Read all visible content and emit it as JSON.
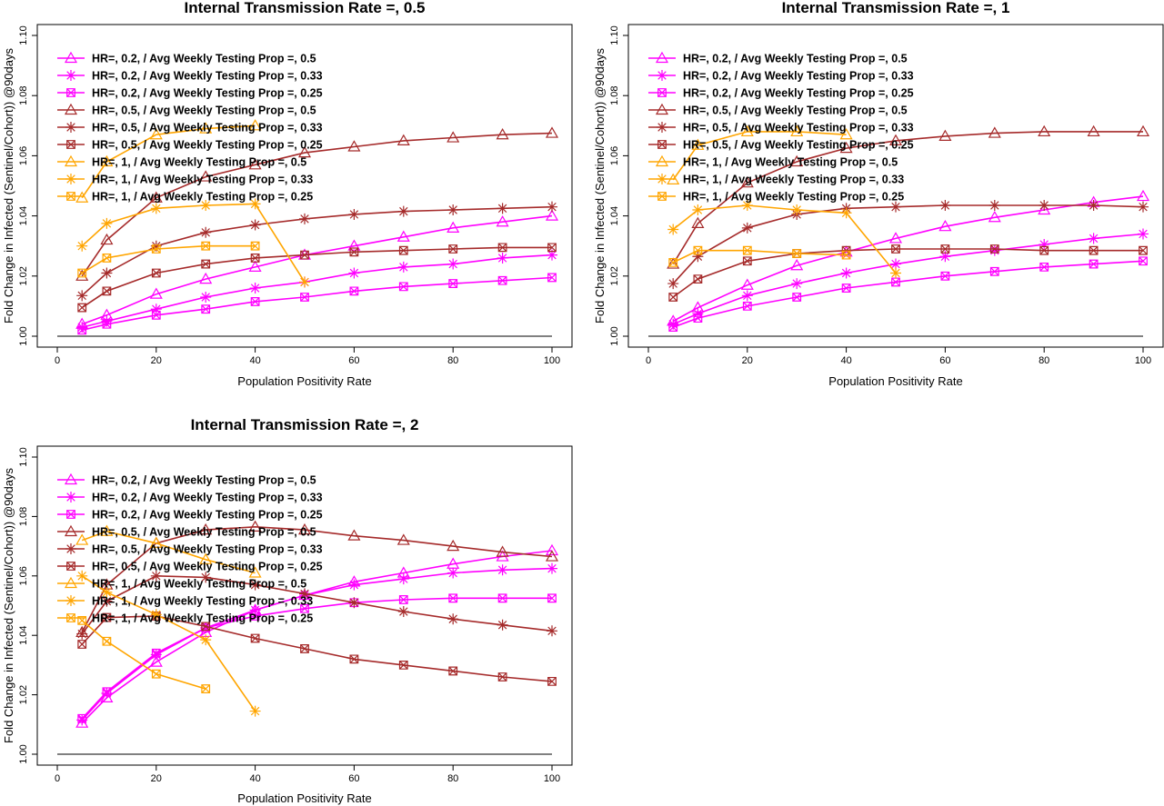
{
  "chart_data": [
    {
      "type": "line",
      "title": "Internal Transmission Rate =, 0.5",
      "xlabel": "Population Positivity Rate",
      "ylabel": "Fold Change in Infected (Sentinel/Cohort)) @90days",
      "xlim": [
        0,
        100
      ],
      "ylim": [
        1.0,
        1.1
      ],
      "xticks": [
        "0",
        "20",
        "40",
        "60",
        "80",
        "100"
      ],
      "yticks": [
        "1.00",
        "1.02",
        "1.04",
        "1.06",
        "1.08",
        "1.10"
      ],
      "reference_line_y": 1.0,
      "legend": "top-left",
      "series": [
        {
          "name": "HR=, 0.2, / Avg Weekly Testing Prop =, 0.5",
          "color": "#ff00ff",
          "marker": "triangle",
          "x": [
            5,
            10,
            20,
            30,
            40,
            50,
            60,
            70,
            80,
            90,
            100
          ],
          "y": [
            1.004,
            1.007,
            1.014,
            1.019,
            1.023,
            1.027,
            1.03,
            1.033,
            1.036,
            1.038,
            1.04
          ]
        },
        {
          "name": "HR=, 0.2, / Avg Weekly Testing Prop =, 0.33",
          "color": "#ff00ff",
          "marker": "asterisk",
          "x": [
            5,
            10,
            20,
            30,
            40,
            50,
            60,
            70,
            80,
            90,
            100
          ],
          "y": [
            1.003,
            1.005,
            1.009,
            1.013,
            1.016,
            1.018,
            1.021,
            1.023,
            1.024,
            1.026,
            1.027
          ]
        },
        {
          "name": "HR=, 0.2, / Avg Weekly Testing Prop =, 0.25",
          "color": "#ff00ff",
          "marker": "boxx",
          "x": [
            5,
            10,
            20,
            30,
            40,
            50,
            60,
            70,
            80,
            90,
            100
          ],
          "y": [
            1.002,
            1.004,
            1.007,
            1.009,
            1.0115,
            1.013,
            1.015,
            1.0165,
            1.0175,
            1.0185,
            1.0195
          ]
        },
        {
          "name": "HR=, 0.5, / Avg Weekly Testing Prop =, 0.5",
          "color": "#a52a2a",
          "marker": "triangle",
          "x": [
            5,
            10,
            20,
            30,
            40,
            50,
            60,
            70,
            80,
            90,
            100
          ],
          "y": [
            1.02,
            1.032,
            1.046,
            1.053,
            1.057,
            1.061,
            1.063,
            1.065,
            1.066,
            1.067,
            1.0675
          ]
        },
        {
          "name": "HR=, 0.5, / Avg Weekly Testing Prop =, 0.33",
          "color": "#a52a2a",
          "marker": "asterisk",
          "x": [
            5,
            10,
            20,
            30,
            40,
            50,
            60,
            70,
            80,
            90,
            100
          ],
          "y": [
            1.0135,
            1.021,
            1.03,
            1.0345,
            1.037,
            1.039,
            1.0405,
            1.0415,
            1.042,
            1.0425,
            1.043
          ]
        },
        {
          "name": "HR=, 0.5, / Avg Weekly Testing Prop =, 0.25",
          "color": "#a52a2a",
          "marker": "boxx",
          "x": [
            5,
            10,
            20,
            30,
            40,
            50,
            60,
            70,
            80,
            90,
            100
          ],
          "y": [
            1.0095,
            1.015,
            1.021,
            1.024,
            1.026,
            1.027,
            1.028,
            1.0285,
            1.029,
            1.0295,
            1.0295
          ]
        },
        {
          "name": "HR=, 1, / Avg Weekly Testing Prop =, 0.5",
          "color": "#ffa500",
          "marker": "triangle",
          "x": [
            5,
            10,
            20,
            30,
            40
          ],
          "y": [
            1.046,
            1.058,
            1.067,
            1.069,
            1.07
          ]
        },
        {
          "name": "HR=, 1, / Avg Weekly Testing Prop =, 0.33",
          "color": "#ffa500",
          "marker": "asterisk",
          "x": [
            5,
            10,
            20,
            30,
            40,
            50
          ],
          "y": [
            1.03,
            1.0375,
            1.0425,
            1.0435,
            1.044,
            1.018
          ]
        },
        {
          "name": "HR=, 1, / Avg Weekly Testing Prop =, 0.25",
          "color": "#ffa500",
          "marker": "boxx",
          "x": [
            5,
            10,
            20,
            30,
            40
          ],
          "y": [
            1.021,
            1.026,
            1.029,
            1.03,
            1.03
          ]
        }
      ]
    },
    {
      "type": "line",
      "title": "Internal Transmission Rate =, 1",
      "xlabel": "Population Positivity Rate",
      "ylabel": "Fold Change in Infected (Sentinel/Cohort)) @90days",
      "xlim": [
        0,
        100
      ],
      "ylim": [
        1.0,
        1.1
      ],
      "xticks": [
        "0",
        "20",
        "40",
        "60",
        "80",
        "100"
      ],
      "yticks": [
        "1.00",
        "1.02",
        "1.04",
        "1.06",
        "1.08",
        "1.10"
      ],
      "reference_line_y": 1.0,
      "legend": "top-left",
      "series": [
        {
          "name": "HR=, 0.2, / Avg Weekly Testing Prop =, 0.5",
          "color": "#ff00ff",
          "marker": "triangle",
          "x": [
            5,
            10,
            20,
            30,
            40,
            50,
            60,
            70,
            80,
            90,
            100
          ],
          "y": [
            1.005,
            1.0095,
            1.017,
            1.0235,
            1.028,
            1.0325,
            1.0365,
            1.0395,
            1.042,
            1.0445,
            1.0465
          ]
        },
        {
          "name": "HR=, 0.2, / Avg Weekly Testing Prop =, 0.33",
          "color": "#ff00ff",
          "marker": "asterisk",
          "x": [
            5,
            10,
            20,
            30,
            40,
            50,
            60,
            70,
            80,
            90,
            100
          ],
          "y": [
            1.004,
            1.0075,
            1.0135,
            1.0175,
            1.021,
            1.024,
            1.0265,
            1.0285,
            1.0305,
            1.0325,
            1.034
          ]
        },
        {
          "name": "HR=, 0.2, / Avg Weekly Testing Prop =, 0.25",
          "color": "#ff00ff",
          "marker": "boxx",
          "x": [
            5,
            10,
            20,
            30,
            40,
            50,
            60,
            70,
            80,
            90,
            100
          ],
          "y": [
            1.003,
            1.006,
            1.01,
            1.013,
            1.016,
            1.018,
            1.02,
            1.0215,
            1.023,
            1.024,
            1.025
          ]
        },
        {
          "name": "HR=, 0.5, / Avg Weekly Testing Prop =, 0.5",
          "color": "#a52a2a",
          "marker": "triangle",
          "x": [
            5,
            10,
            20,
            30,
            40,
            50,
            60,
            70,
            80,
            90,
            100
          ],
          "y": [
            1.024,
            1.0375,
            1.051,
            1.058,
            1.0625,
            1.065,
            1.0665,
            1.0675,
            1.068,
            1.068,
            1.068
          ]
        },
        {
          "name": "HR=, 0.5, / Avg Weekly Testing Prop =, 0.33",
          "color": "#a52a2a",
          "marker": "asterisk",
          "x": [
            5,
            10,
            20,
            30,
            40,
            50,
            60,
            70,
            80,
            90,
            100
          ],
          "y": [
            1.0175,
            1.0265,
            1.036,
            1.0405,
            1.0425,
            1.043,
            1.0435,
            1.0435,
            1.0435,
            1.0435,
            1.043
          ]
        },
        {
          "name": "HR=, 0.5, / Avg Weekly Testing Prop =, 0.25",
          "color": "#a52a2a",
          "marker": "boxx",
          "x": [
            5,
            10,
            20,
            30,
            40,
            50,
            60,
            70,
            80,
            90,
            100
          ],
          "y": [
            1.013,
            1.019,
            1.025,
            1.0275,
            1.0285,
            1.029,
            1.029,
            1.029,
            1.0285,
            1.0285,
            1.0285
          ]
        },
        {
          "name": "HR=, 1, / Avg Weekly Testing Prop =, 0.5",
          "color": "#ffa500",
          "marker": "triangle",
          "x": [
            5,
            10,
            20,
            30,
            40
          ],
          "y": [
            1.052,
            1.0635,
            1.068,
            1.068,
            1.067
          ]
        },
        {
          "name": "HR=, 1, / Avg Weekly Testing Prop =, 0.33",
          "color": "#ffa500",
          "marker": "asterisk",
          "x": [
            5,
            10,
            20,
            30,
            40,
            50
          ],
          "y": [
            1.0355,
            1.042,
            1.0435,
            1.042,
            1.041,
            1.021
          ]
        },
        {
          "name": "HR=, 1, / Avg Weekly Testing Prop =, 0.25",
          "color": "#ffa500",
          "marker": "boxx",
          "x": [
            5,
            10,
            20,
            30,
            40
          ],
          "y": [
            1.0245,
            1.0285,
            1.0285,
            1.0275,
            1.027
          ]
        }
      ]
    },
    {
      "type": "line",
      "title": "Internal Transmission Rate =, 2",
      "xlabel": "Population Positivity Rate",
      "ylabel": "Fold Change in Infected (Sentinel/Cohort)) @90days",
      "xlim": [
        0,
        100
      ],
      "ylim": [
        1.0,
        1.1
      ],
      "xticks": [
        "0",
        "20",
        "40",
        "60",
        "80",
        "100"
      ],
      "yticks": [
        "1.00",
        "1.02",
        "1.04",
        "1.06",
        "1.08",
        "1.10"
      ],
      "reference_line_y": 1.0,
      "legend": "top-left",
      "series": [
        {
          "name": "HR=, 0.2, / Avg Weekly Testing Prop =, 0.5",
          "color": "#ff00ff",
          "marker": "triangle",
          "x": [
            5,
            10,
            20,
            30,
            40,
            50,
            60,
            70,
            80,
            90,
            100
          ],
          "y": [
            1.0105,
            1.019,
            1.031,
            1.041,
            1.0485,
            1.0535,
            1.058,
            1.061,
            1.064,
            1.0665,
            1.0685
          ]
        },
        {
          "name": "HR=, 0.2, / Avg Weekly Testing Prop =, 0.33",
          "color": "#ff00ff",
          "marker": "asterisk",
          "x": [
            5,
            10,
            20,
            30,
            40,
            50,
            60,
            70,
            80,
            90,
            100
          ],
          "y": [
            1.0115,
            1.0205,
            1.0335,
            1.0425,
            1.0485,
            1.0535,
            1.057,
            1.059,
            1.061,
            1.062,
            1.0625
          ]
        },
        {
          "name": "HR=, 0.2, / Avg Weekly Testing Prop =, 0.25",
          "color": "#ff00ff",
          "marker": "boxx",
          "x": [
            5,
            10,
            20,
            30,
            40,
            50,
            60,
            70,
            80,
            90,
            100
          ],
          "y": [
            1.012,
            1.021,
            1.034,
            1.0425,
            1.0465,
            1.049,
            1.051,
            1.052,
            1.0525,
            1.0525,
            1.0525
          ]
        },
        {
          "name": "HR=, 0.5, / Avg Weekly Testing Prop =, 0.5",
          "color": "#a52a2a",
          "marker": "triangle",
          "x": [
            5,
            10,
            20,
            30,
            40,
            50,
            60,
            70,
            80,
            90,
            100
          ],
          "y": [
            1.041,
            1.057,
            1.071,
            1.0755,
            1.0765,
            1.0755,
            1.0735,
            1.072,
            1.07,
            1.068,
            1.0665
          ]
        },
        {
          "name": "HR=, 0.5, / Avg Weekly Testing Prop =, 0.33",
          "color": "#a52a2a",
          "marker": "asterisk",
          "x": [
            5,
            10,
            20,
            30,
            40,
            50,
            60,
            70,
            80,
            90,
            100
          ],
          "y": [
            1.0405,
            1.0515,
            1.06,
            1.0595,
            1.057,
            1.054,
            1.051,
            1.048,
            1.0455,
            1.0435,
            1.0415
          ]
        },
        {
          "name": "HR=, 0.5, / Avg Weekly Testing Prop =, 0.25",
          "color": "#a52a2a",
          "marker": "boxx",
          "x": [
            5,
            10,
            20,
            30,
            40,
            50,
            60,
            70,
            80,
            90,
            100
          ],
          "y": [
            1.037,
            1.046,
            1.0465,
            1.043,
            1.039,
            1.0355,
            1.032,
            1.03,
            1.028,
            1.026,
            1.0245
          ]
        },
        {
          "name": "HR=, 1, / Avg Weekly Testing Prop =, 0.5",
          "color": "#ffa500",
          "marker": "triangle",
          "x": [
            5,
            10,
            20,
            30,
            40
          ],
          "y": [
            1.072,
            1.075,
            1.071,
            1.0655,
            1.061
          ]
        },
        {
          "name": "HR=, 1, / Avg Weekly Testing Prop =, 0.33",
          "color": "#ffa500",
          "marker": "asterisk",
          "x": [
            5,
            10,
            20,
            30,
            40
          ],
          "y": [
            1.06,
            1.0545,
            1.047,
            1.0385,
            1.0145
          ]
        },
        {
          "name": "HR=, 1, / Avg Weekly Testing Prop =, 0.25",
          "color": "#ffa500",
          "marker": "boxx",
          "x": [
            5,
            10,
            20,
            30
          ],
          "y": [
            1.045,
            1.038,
            1.027,
            1.022
          ]
        }
      ]
    }
  ]
}
